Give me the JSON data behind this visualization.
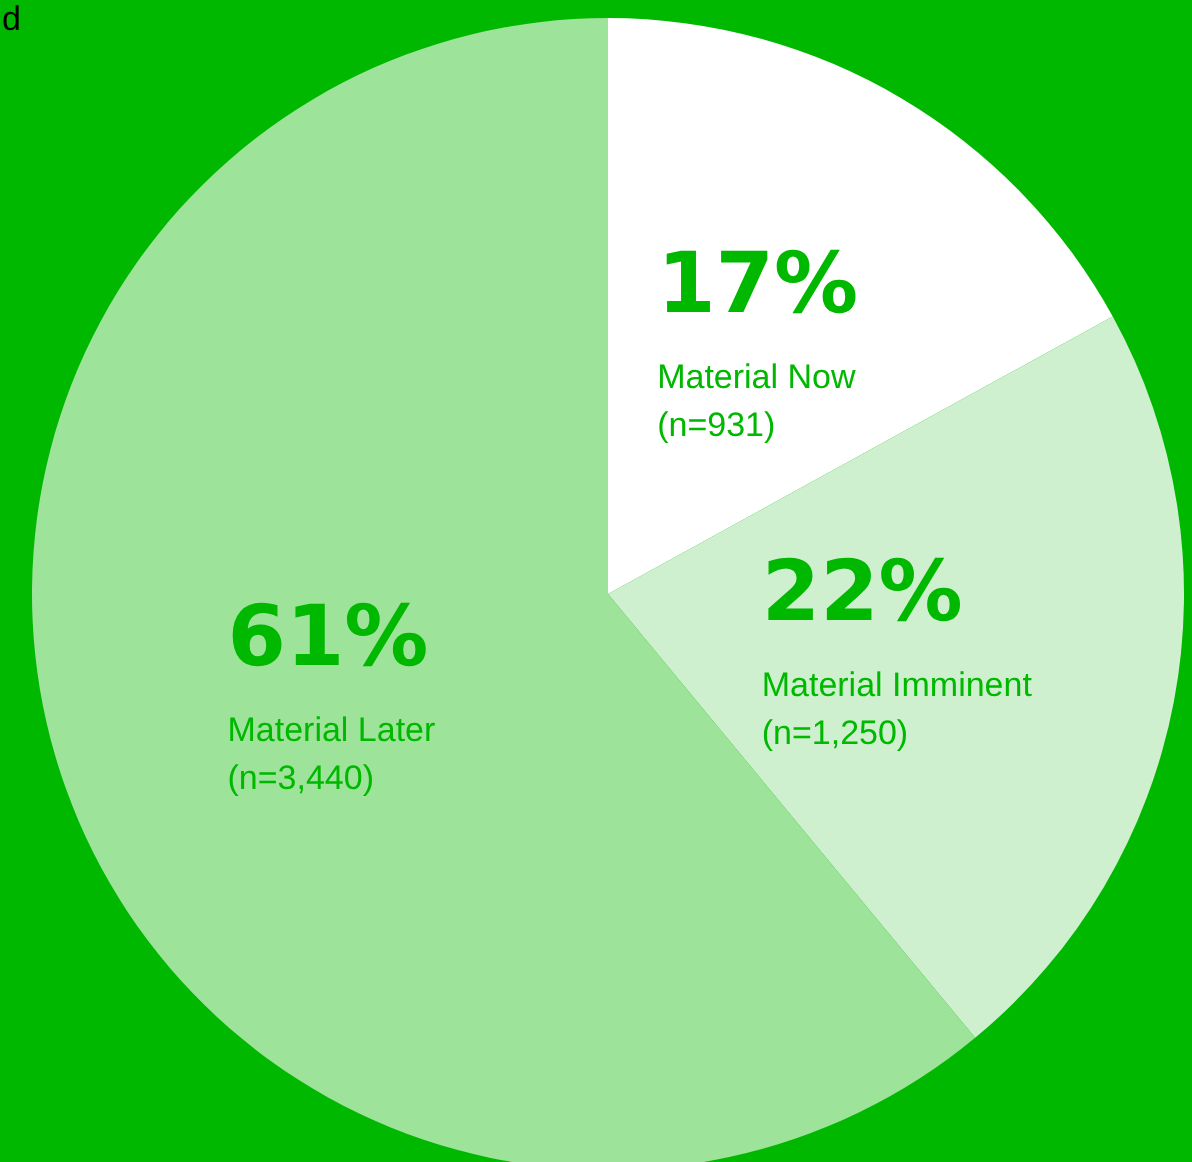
{
  "chart_data": {
    "type": "pie",
    "categories": [
      "Material Now\n(n=931)",
      "Material Imminent\n(n=1,250)",
      "Material Later\n(n=3,440)"
    ],
    "values": [
      17,
      22,
      61
    ],
    "colors": [
      "#ffffff",
      "#cff0cf",
      "#9de39a"
    ],
    "value_labels": [
      "17%",
      "22%",
      "61%"
    ],
    "annotations": [
      "d"
    ],
    "legend": false
  }
}
